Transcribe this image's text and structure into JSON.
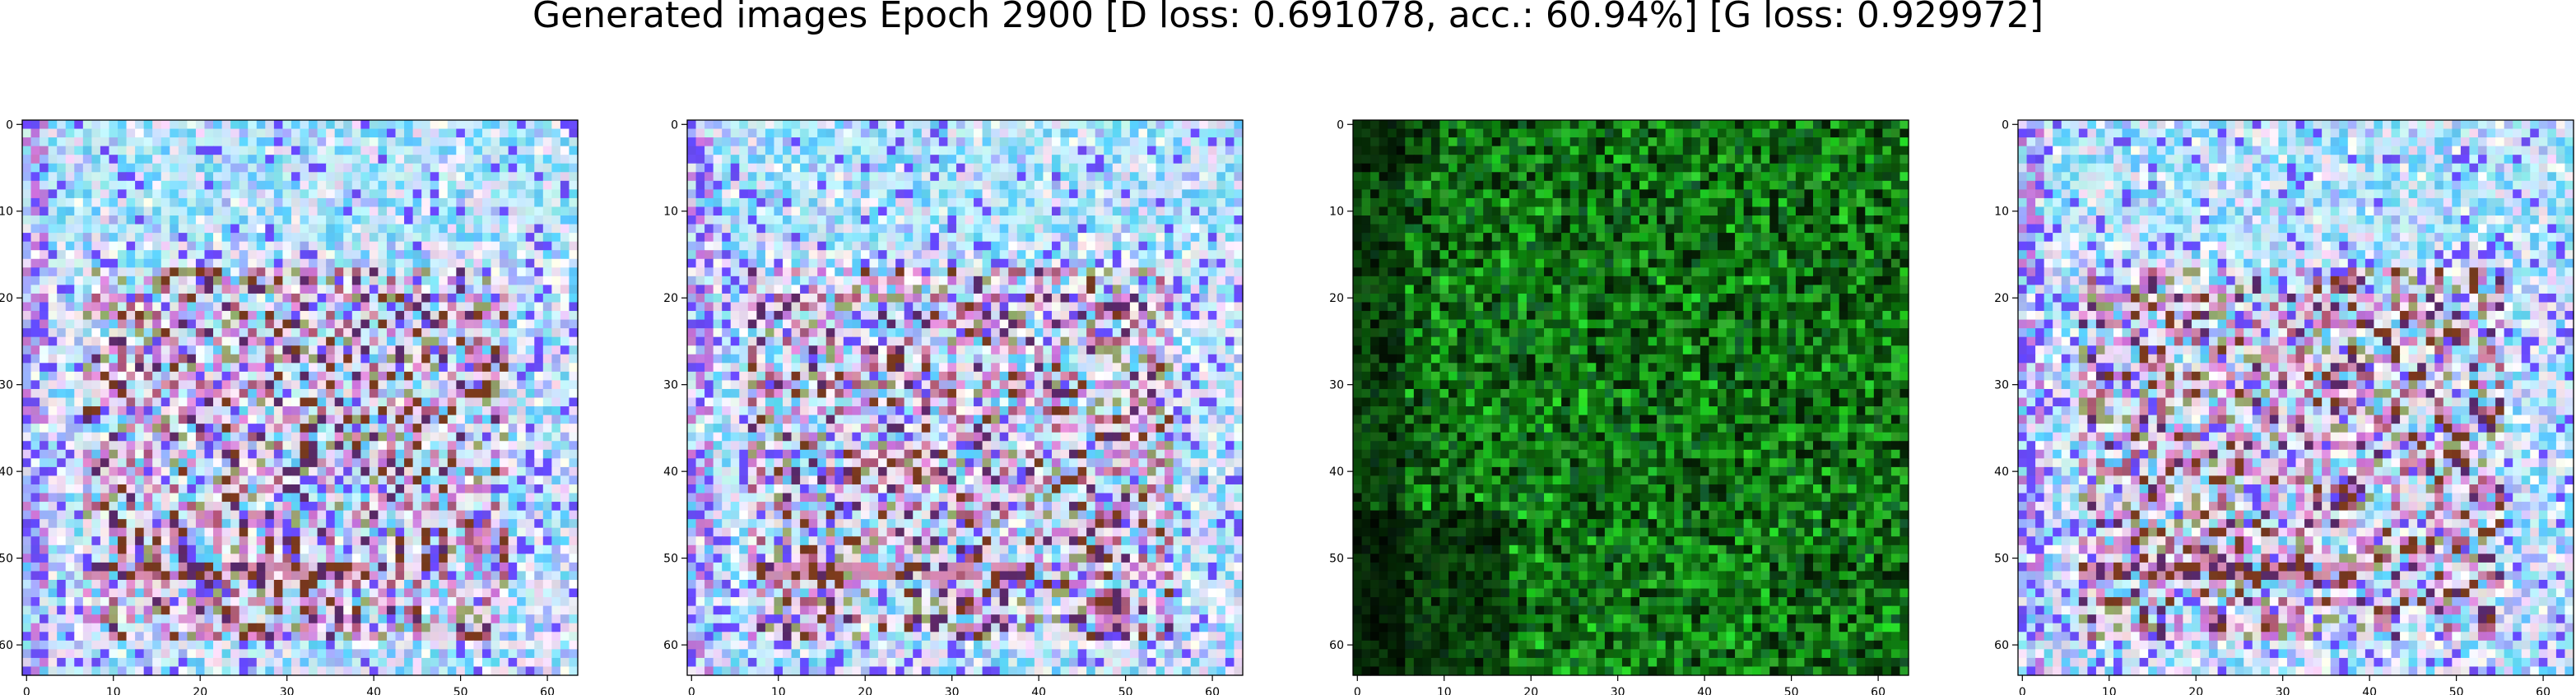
{
  "figure": {
    "title": "Generated images Epoch 2900 [D loss: 0.691078, acc.: 60.94%] [G loss: 0.929972]"
  },
  "axes_ticks": {
    "x_ticks": [
      "0",
      "10",
      "20",
      "30",
      "40",
      "50",
      "60"
    ],
    "y_ticks": [
      "0",
      "10",
      "20",
      "30",
      "40",
      "50",
      "60"
    ],
    "x_tick_values": [
      0,
      10,
      20,
      30,
      40,
      50,
      60
    ],
    "y_tick_values": [
      0,
      10,
      20,
      30,
      40,
      50,
      60
    ],
    "pixel_range": [
      -0.5,
      63.5
    ]
  },
  "panels": [
    {
      "id": "sample-1",
      "palette": "pastel",
      "base_color": "#e6d6f5"
    },
    {
      "id": "sample-2",
      "palette": "pastel",
      "base_color": "#dcd4f2"
    },
    {
      "id": "sample-3",
      "palette": "green",
      "base_color": "#1c8a1c"
    },
    {
      "id": "sample-4",
      "palette": "pastel",
      "base_color": "#dcd4f2"
    }
  ],
  "colors": {
    "pastel": [
      "#f4e6f8",
      "#e9d9f5",
      "#ffffff",
      "#cdeffd",
      "#8fe3fb",
      "#5fd0ff",
      "#e392dc",
      "#c878d8",
      "#d58bb0",
      "#b05a7a",
      "#7b3a1e",
      "#5c2a6a",
      "#6a4cff",
      "#a3b5ff",
      "#c9f0ff",
      "#efe0e8",
      "#9aa86f"
    ],
    "green": [
      "#0f7a0f",
      "#15941a",
      "#0b5c0b",
      "#1fa81f",
      "#083d08",
      "#2bbf2b",
      "#0a4a12",
      "#12662a",
      "#051e05",
      "#239a23",
      "#0d6e0d"
    ]
  }
}
